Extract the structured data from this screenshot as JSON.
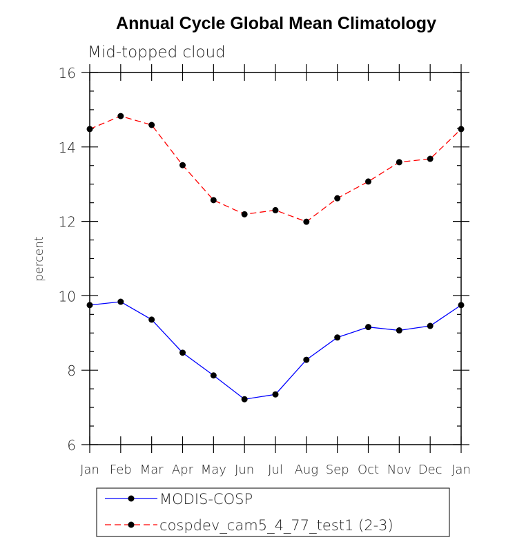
{
  "chart_data": {
    "type": "line",
    "title": "Annual Cycle Global Mean Climatology",
    "subtitle": "Mid-topped cloud",
    "xlabel": "",
    "ylabel": "percent",
    "ylim": [
      6,
      16
    ],
    "yticks": [
      6,
      8,
      10,
      12,
      14,
      16
    ],
    "categories": [
      "Jan",
      "Feb",
      "Mar",
      "Apr",
      "May",
      "Jun",
      "Jul",
      "Aug",
      "Sep",
      "Oct",
      "Nov",
      "Dec",
      "Jan"
    ],
    "grid": false,
    "legend_position": "bottom",
    "series": [
      {
        "name": "MODIS-COSP",
        "color": "#0000ff",
        "dash": "solid",
        "values": [
          9.75,
          9.84,
          9.36,
          8.47,
          7.86,
          7.22,
          7.35,
          8.28,
          8.88,
          9.16,
          9.07,
          9.19,
          9.75
        ]
      },
      {
        "name": "cospdev_cam5_4_77_test1 (2-3)",
        "color": "#ff0000",
        "dash": "dashed",
        "values": [
          14.48,
          14.83,
          14.59,
          13.51,
          12.57,
          12.19,
          12.3,
          11.99,
          12.62,
          13.07,
          13.59,
          13.68,
          14.48
        ]
      }
    ]
  }
}
